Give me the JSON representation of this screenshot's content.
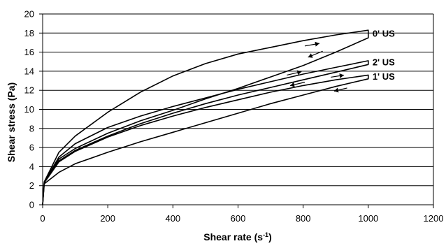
{
  "chart_data": {
    "type": "line",
    "xlabel": "Shear rate (s",
    "xlabel_sup": "-1",
    "xlabel_end": ")",
    "ylabel": "Shear stress (Pa)",
    "xlim": [
      0,
      1200
    ],
    "ylim": [
      0,
      20
    ],
    "xticks": [
      0,
      200,
      400,
      600,
      800,
      1000,
      1200
    ],
    "yticks": [
      0,
      2,
      4,
      6,
      8,
      10,
      12,
      14,
      16,
      18,
      20
    ],
    "grid": "horizontal",
    "legend": "none",
    "annotations": [
      "0' US",
      "2' US",
      "1' US"
    ],
    "series": [
      {
        "label": "0' US",
        "up": [
          [
            0,
            0
          ],
          [
            5,
            2.4
          ],
          [
            50,
            5.5
          ],
          [
            100,
            7.2
          ],
          [
            200,
            9.7
          ],
          [
            300,
            11.8
          ],
          [
            400,
            13.5
          ],
          [
            500,
            14.8
          ],
          [
            600,
            15.8
          ],
          [
            700,
            16.5
          ],
          [
            800,
            17.2
          ],
          [
            900,
            17.8
          ],
          [
            1000,
            18.3
          ]
        ],
        "down": [
          [
            1000,
            17.5
          ],
          [
            900,
            16.0
          ],
          [
            800,
            14.6
          ],
          [
            700,
            13.4
          ],
          [
            600,
            12.2
          ],
          [
            500,
            11.1
          ],
          [
            400,
            9.9
          ],
          [
            300,
            8.8
          ],
          [
            200,
            7.5
          ],
          [
            100,
            5.9
          ],
          [
            50,
            4.8
          ],
          [
            5,
            2.4
          ],
          [
            0,
            0
          ]
        ]
      },
      {
        "label": "2' US",
        "up": [
          [
            0,
            0
          ],
          [
            5,
            2.4
          ],
          [
            50,
            5.0
          ],
          [
            100,
            6.4
          ],
          [
            200,
            8.1
          ],
          [
            300,
            9.3
          ],
          [
            400,
            10.3
          ],
          [
            500,
            11.2
          ],
          [
            600,
            12.1
          ],
          [
            700,
            12.9
          ],
          [
            800,
            13.7
          ],
          [
            900,
            14.4
          ],
          [
            1000,
            15.1
          ]
        ],
        "down": [
          [
            1000,
            14.7
          ],
          [
            900,
            13.9
          ],
          [
            800,
            13.1
          ],
          [
            700,
            12.3
          ],
          [
            600,
            11.5
          ],
          [
            500,
            10.6
          ],
          [
            400,
            9.6
          ],
          [
            300,
            8.5
          ],
          [
            200,
            7.2
          ],
          [
            100,
            5.7
          ],
          [
            50,
            4.6
          ],
          [
            5,
            2.4
          ],
          [
            0,
            0
          ]
        ]
      },
      {
        "label": "1' US",
        "up": [
          [
            0,
            0
          ],
          [
            5,
            2.3
          ],
          [
            50,
            4.5
          ],
          [
            100,
            5.6
          ],
          [
            200,
            7.1
          ],
          [
            300,
            8.3
          ],
          [
            400,
            9.3
          ],
          [
            500,
            10.2
          ],
          [
            600,
            11.0
          ],
          [
            700,
            11.8
          ],
          [
            800,
            12.5
          ],
          [
            900,
            13.1
          ],
          [
            1000,
            13.6
          ]
        ],
        "down": [
          [
            1000,
            13.2
          ],
          [
            900,
            12.4
          ],
          [
            800,
            11.5
          ],
          [
            700,
            10.6
          ],
          [
            600,
            9.6
          ],
          [
            500,
            8.6
          ],
          [
            400,
            7.6
          ],
          [
            300,
            6.6
          ],
          [
            200,
            5.5
          ],
          [
            100,
            4.3
          ],
          [
            50,
            3.4
          ],
          [
            5,
            2.2
          ],
          [
            0,
            0
          ]
        ]
      }
    ]
  }
}
